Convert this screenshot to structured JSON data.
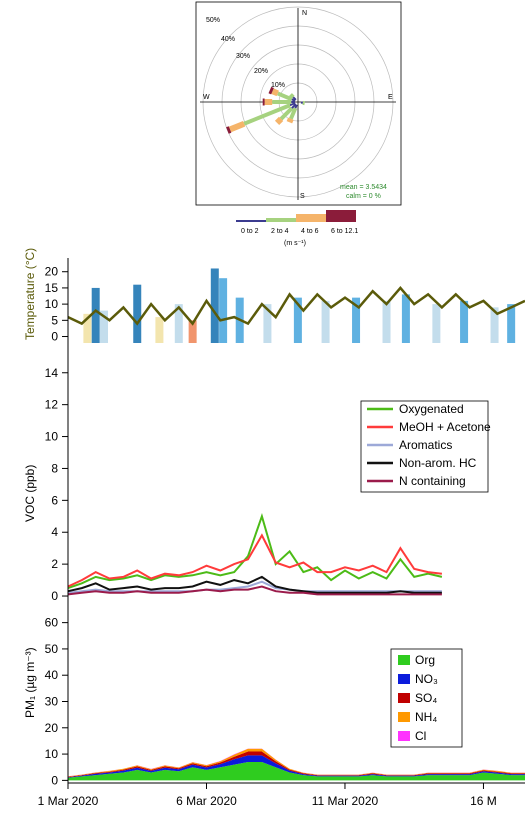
{
  "chart_data": [
    {
      "type": "polar-windrose",
      "directions": [
        "N",
        "E",
        "S",
        "W"
      ],
      "radial_labels": [
        "50%",
        "40%",
        "30%",
        "20%",
        "10%"
      ],
      "speed_bins": [
        {
          "label": "0 to 2",
          "color": "#3b3b8f"
        },
        {
          "label": "2 to 4",
          "color": "#a6d27f"
        },
        {
          "label": "4 to 6",
          "color": "#f5b46a"
        },
        {
          "label": "6 to 12.1",
          "color": "#8b1c3a"
        }
      ],
      "unit_label": "(m s⁻¹)",
      "stats": {
        "mean": "mean = 3.5434",
        "calm": "calm = 0 %"
      },
      "petals": [
        {
          "dir_deg": 248,
          "pct": [
            3,
            26,
            8,
            1.5
          ]
        },
        {
          "dir_deg": 270,
          "pct": [
            2,
            10,
            4,
            1
          ]
        },
        {
          "dir_deg": 293,
          "pct": [
            2,
            8,
            3,
            1.5
          ]
        },
        {
          "dir_deg": 225,
          "pct": [
            3,
            8,
            3,
            0
          ]
        },
        {
          "dir_deg": 203,
          "pct": [
            2,
            6,
            2,
            0
          ]
        },
        {
          "dir_deg": 315,
          "pct": [
            2,
            2,
            0,
            0
          ]
        },
        {
          "dir_deg": 100,
          "pct": [
            1,
            1,
            0,
            0
          ]
        }
      ]
    },
    {
      "type": "area",
      "ylabel": "Temperature (°C)",
      "yticks": [
        0,
        5,
        10,
        15,
        20
      ],
      "ylim": [
        -2,
        23
      ],
      "xlim": [
        0,
        16.5
      ],
      "temperature_x": [
        0,
        0.5,
        1,
        1.5,
        2,
        2.5,
        3,
        3.5,
        4,
        4.5,
        5,
        5.5,
        6,
        6.5,
        7,
        7.5,
        8,
        8.5,
        9,
        9.5,
        10,
        10.5,
        11,
        11.5,
        12,
        12.5,
        13,
        13.5,
        14,
        14.5,
        15,
        15.5,
        16,
        16.5
      ],
      "temperature_y": [
        6,
        4,
        8,
        5,
        9,
        4,
        10,
        5,
        9,
        4,
        11,
        5,
        6,
        4,
        10,
        6,
        13,
        8,
        13,
        9,
        12,
        9,
        14,
        10,
        15,
        10,
        13,
        9,
        13,
        9,
        11,
        7,
        9,
        11
      ],
      "bars": [
        {
          "x": 0.7,
          "v": 7,
          "c": "#f2e2a5"
        },
        {
          "x": 1.0,
          "v": 15,
          "c": "#1f77b4"
        },
        {
          "x": 1.3,
          "v": 8,
          "c": "#bcd9ea"
        },
        {
          "x": 2.5,
          "v": 16,
          "c": "#1f77b4"
        },
        {
          "x": 3.3,
          "v": 6,
          "c": "#f2e2a5"
        },
        {
          "x": 4.0,
          "v": 10,
          "c": "#bcd9ea"
        },
        {
          "x": 4.5,
          "v": 5,
          "c": "#f08a5d"
        },
        {
          "x": 5.3,
          "v": 21,
          "c": "#1f77b4"
        },
        {
          "x": 5.6,
          "v": 18,
          "c": "#4ea8de"
        },
        {
          "x": 6.2,
          "v": 12,
          "c": "#4ea8de"
        },
        {
          "x": 7.2,
          "v": 10,
          "c": "#bcd9ea"
        },
        {
          "x": 8.3,
          "v": 12,
          "c": "#4ea8de"
        },
        {
          "x": 9.3,
          "v": 11,
          "c": "#bcd9ea"
        },
        {
          "x": 10.4,
          "v": 12,
          "c": "#4ea8de"
        },
        {
          "x": 11.5,
          "v": 11,
          "c": "#bcd9ea"
        },
        {
          "x": 12.2,
          "v": 13,
          "c": "#4ea8de"
        },
        {
          "x": 13.3,
          "v": 10,
          "c": "#bcd9ea"
        },
        {
          "x": 14.3,
          "v": 11,
          "c": "#4ea8de"
        },
        {
          "x": 15.4,
          "v": 9,
          "c": "#bcd9ea"
        },
        {
          "x": 16.0,
          "v": 10,
          "c": "#4ea8de"
        }
      ]
    },
    {
      "type": "line",
      "ylabel": "VOC (ppb)",
      "yticks": [
        0,
        2,
        4,
        6,
        8,
        10,
        12,
        14
      ],
      "ylim": [
        -0.5,
        14.8
      ],
      "xlim": [
        0,
        16.5
      ],
      "x": [
        0,
        0.5,
        1,
        1.5,
        2,
        2.5,
        3,
        3.5,
        4,
        4.5,
        5,
        5.5,
        6,
        6.5,
        7,
        7.5,
        8,
        8.5,
        9,
        9.5,
        10,
        10.5,
        11,
        11.5,
        12,
        12.5,
        13,
        13.5
      ],
      "series": [
        {
          "name": "Oxygenated",
          "color": "#4cbb17",
          "values": [
            0.5,
            0.8,
            1.2,
            1.0,
            1.1,
            1.3,
            1.0,
            1.3,
            1.2,
            1.3,
            1.5,
            1.3,
            1.5,
            2.5,
            5.0,
            2.0,
            2.8,
            1.5,
            1.8,
            1.0,
            1.6,
            1.1,
            1.5,
            1.1,
            2.3,
            1.2,
            1.4,
            1.2
          ]
        },
        {
          "name": "MeOH + Acetone",
          "color": "#ff3b3b",
          "values": [
            0.6,
            1.0,
            1.5,
            1.1,
            1.2,
            1.6,
            1.1,
            1.4,
            1.3,
            1.5,
            1.9,
            1.6,
            2.0,
            2.3,
            3.8,
            2.1,
            1.8,
            2.1,
            1.5,
            1.5,
            1.8,
            1.6,
            1.9,
            1.5,
            3.0,
            1.7,
            1.5,
            1.4
          ]
        },
        {
          "name": "Aromatics",
          "color": "#9da9d8",
          "values": [
            0.2,
            0.3,
            0.4,
            0.3,
            0.3,
            0.3,
            0.3,
            0.3,
            0.3,
            0.3,
            0.4,
            0.4,
            0.5,
            0.6,
            0.9,
            0.5,
            0.4,
            0.3,
            0.3,
            0.3,
            0.3,
            0.3,
            0.3,
            0.3,
            0.3,
            0.3,
            0.3,
            0.3
          ]
        },
        {
          "name": "Non-arom. HC",
          "color": "#111111",
          "values": [
            0.3,
            0.5,
            0.8,
            0.4,
            0.5,
            0.6,
            0.4,
            0.5,
            0.5,
            0.6,
            0.9,
            0.7,
            1.0,
            0.8,
            1.2,
            0.6,
            0.4,
            0.3,
            0.2,
            0.2,
            0.2,
            0.2,
            0.2,
            0.2,
            0.3,
            0.2,
            0.2,
            0.2
          ]
        },
        {
          "name": "N containing",
          "color": "#9b1b4b",
          "values": [
            0.1,
            0.2,
            0.3,
            0.2,
            0.2,
            0.3,
            0.2,
            0.2,
            0.2,
            0.3,
            0.4,
            0.3,
            0.4,
            0.4,
            0.6,
            0.3,
            0.2,
            0.2,
            0.1,
            0.1,
            0.1,
            0.1,
            0.1,
            0.1,
            0.1,
            0.1,
            0.1,
            0.1
          ]
        }
      ]
    },
    {
      "type": "area",
      "ylabel": "PM₁ (µg m⁻³)",
      "yticks": [
        0,
        10,
        20,
        30,
        40,
        50,
        60
      ],
      "ylim": [
        -1,
        61
      ],
      "xlim": [
        0,
        16.5
      ],
      "xtick_labels": [
        "1 Mar 2020",
        "6 Mar 2020",
        "11 Mar 2020",
        "16 M"
      ],
      "xtick_values": [
        0,
        5,
        10,
        15
      ],
      "x": [
        0,
        0.5,
        1,
        1.5,
        2,
        2.5,
        3,
        3.5,
        4,
        4.5,
        5,
        5.5,
        6,
        6.5,
        7,
        7.5,
        8,
        8.5,
        9,
        9.5,
        10,
        10.5,
        11,
        11.5,
        12,
        12.5,
        13,
        13.5,
        14,
        14.5,
        15,
        15.5,
        16,
        16.5
      ],
      "series": [
        {
          "name": "Org",
          "color": "#2fcc1f",
          "values": [
            1,
            1.5,
            2,
            2.5,
            3,
            4,
            3,
            4,
            3.5,
            5,
            4,
            5,
            6,
            7,
            7,
            5,
            3,
            2,
            1.5,
            1.5,
            1.5,
            1.5,
            2,
            1.5,
            1.5,
            1.5,
            2,
            2,
            2,
            2,
            3,
            2.5,
            2,
            2
          ]
        },
        {
          "name": "NO₃",
          "color": "#0b1bdc",
          "values": [
            0.2,
            0.3,
            0.5,
            0.5,
            0.7,
            0.8,
            0.6,
            0.8,
            0.7,
            1,
            0.9,
            1.2,
            2,
            2.5,
            2.5,
            1.5,
            0.7,
            0.4,
            0.3,
            0.3,
            0.3,
            0.3,
            0.4,
            0.3,
            0.3,
            0.3,
            0.4,
            0.4,
            0.4,
            0.4,
            0.5,
            0.5,
            0.4,
            0.4
          ]
        },
        {
          "name": "SO₄",
          "color": "#c00000",
          "values": [
            0.2,
            0.2,
            0.3,
            0.3,
            0.4,
            0.5,
            0.4,
            0.5,
            0.4,
            0.5,
            0.5,
            0.6,
            1,
            1.5,
            1.5,
            0.8,
            0.4,
            0.3,
            0.2,
            0.2,
            0.2,
            0.2,
            0.3,
            0.2,
            0.2,
            0.2,
            0.3,
            0.3,
            0.3,
            0.3,
            0.3,
            0.3,
            0.3,
            0.3
          ]
        },
        {
          "name": "NH₄",
          "color": "#ff9900",
          "values": [
            0.1,
            0.2,
            0.2,
            0.3,
            0.3,
            0.4,
            0.3,
            0.4,
            0.3,
            0.4,
            0.4,
            0.5,
            0.8,
            1,
            1,
            0.6,
            0.3,
            0.2,
            0.2,
            0.2,
            0.2,
            0.2,
            0.2,
            0.2,
            0.2,
            0.2,
            0.2,
            0.2,
            0.2,
            0.2,
            0.3,
            0.3,
            0.2,
            0.2
          ]
        },
        {
          "name": "Cl",
          "color": "#ff33ff",
          "values": [
            0.05,
            0.05,
            0.05,
            0.05,
            0.05,
            0.05,
            0.05,
            0.05,
            0.05,
            0.05,
            0.05,
            0.05,
            0.1,
            0.1,
            0.1,
            0.05,
            0.05,
            0.05,
            0.05,
            0.05,
            0.05,
            0.05,
            0.05,
            0.05,
            0.05,
            0.05,
            0.05,
            0.05,
            0.05,
            0.05,
            0.05,
            0.05,
            0.05,
            0.05
          ]
        }
      ]
    }
  ],
  "temperature_line_color": "#5b5b0a"
}
